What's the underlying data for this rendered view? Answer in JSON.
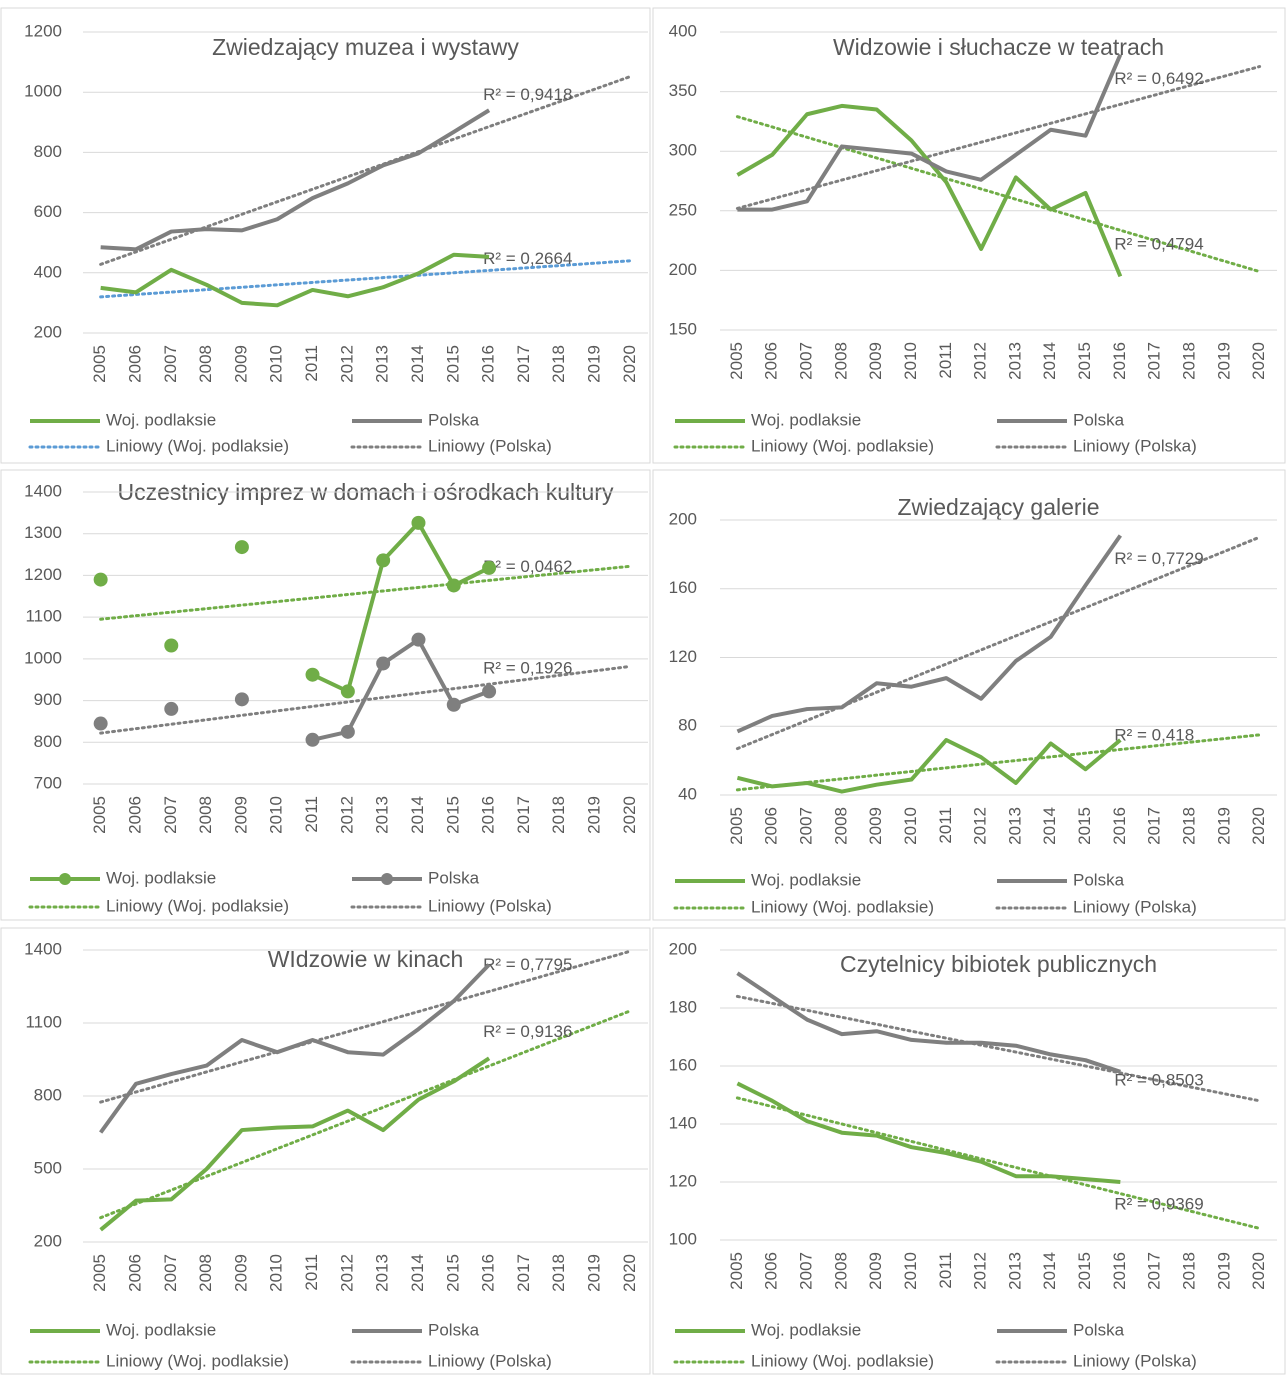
{
  "chart_data": [
    {
      "type": "line",
      "title": "Zwiedzający muzea i wystawy",
      "categories": [
        "2005",
        "2006",
        "2007",
        "2008",
        "2009",
        "2010",
        "2011",
        "2012",
        "2013",
        "2014",
        "2015",
        "2016",
        "2017",
        "2018",
        "2019",
        "2020"
      ],
      "ylim": [
        200,
        1200
      ],
      "yticks": [
        200,
        400,
        600,
        800,
        1000,
        1200
      ],
      "grid": true,
      "markers": false,
      "series": [
        {
          "name": "Woj. podlaksie",
          "color": "#70ad47",
          "values": [
            350,
            335,
            410,
            360,
            300,
            292,
            343,
            322,
            352,
            398,
            460,
            453,
            null,
            null,
            null,
            null
          ]
        },
        {
          "name": "Polska",
          "color": "#7f7f7f",
          "values": [
            485,
            478,
            537,
            545,
            541,
            578,
            648,
            697,
            757,
            797,
            868,
            940,
            null,
            null,
            null,
            null
          ]
        }
      ],
      "trendlines": [
        {
          "name": "Liniowy (Woj. podlaksie)",
          "color": "#5b9bd5",
          "start": 320,
          "end": 440,
          "r2_label": "R² = 0,2664"
        },
        {
          "name": "Liniowy (Polska)",
          "color": "#7f7f7f",
          "start": 428,
          "end": 1052,
          "r2_label": "R² = 0,9418"
        }
      ]
    },
    {
      "type": "line",
      "title": "Widzowie i słuchacze w teatrach",
      "categories": [
        "2005",
        "2006",
        "2007",
        "2008",
        "2009",
        "2010",
        "2011",
        "2012",
        "2013",
        "2014",
        "2015",
        "2016",
        "2017",
        "2018",
        "2019",
        "2020"
      ],
      "ylim": [
        150,
        400
      ],
      "yticks": [
        150,
        200,
        250,
        300,
        350,
        400
      ],
      "grid": true,
      "markers": false,
      "series": [
        {
          "name": "Woj. podlaksie",
          "color": "#70ad47",
          "values": [
            280,
            297,
            331,
            338,
            335,
            309,
            274,
            218,
            278,
            251,
            265,
            195,
            null,
            null,
            null,
            null
          ]
        },
        {
          "name": "Polska",
          "color": "#7f7f7f",
          "values": [
            251,
            251,
            258,
            304,
            301,
            298,
            283,
            276,
            297,
            318,
            313,
            381,
            null,
            null,
            null,
            null
          ]
        }
      ],
      "trendlines": [
        {
          "name": "Liniowy (Woj. podlaksie)",
          "color": "#70ad47",
          "start": 329,
          "end": 199,
          "r2_label": "R² = 0,4794"
        },
        {
          "name": "Liniowy (Polska)",
          "color": "#7f7f7f",
          "start": 252,
          "end": 371,
          "r2_label": "R² = 0,6492"
        }
      ]
    },
    {
      "type": "line",
      "title": "Uczestnicy imprez w domach i ośrodkach kultury",
      "categories": [
        "2005",
        "2006",
        "2007",
        "2008",
        "2009",
        "2010",
        "2011",
        "2012",
        "2013",
        "2014",
        "2015",
        "2016",
        "2017",
        "2018",
        "2019",
        "2020"
      ],
      "ylim": [
        700,
        1400
      ],
      "yticks": [
        700,
        800,
        900,
        1000,
        1100,
        1200,
        1300,
        1400
      ],
      "grid": true,
      "markers": true,
      "series": [
        {
          "name": "Woj. podlaksie",
          "color": "#70ad47",
          "values": [
            1190,
            null,
            1032,
            null,
            1268,
            null,
            962,
            922,
            1236,
            1326,
            1176,
            1218,
            null,
            null,
            null,
            null
          ]
        },
        {
          "name": "Polska",
          "color": "#7f7f7f",
          "values": [
            845,
            null,
            880,
            null,
            903,
            null,
            806,
            825,
            989,
            1046,
            890,
            922,
            null,
            null,
            null,
            null
          ]
        }
      ],
      "trendlines": [
        {
          "name": "Liniowy (Woj. podlaksie)",
          "color": "#70ad47",
          "start": 1095,
          "end": 1222,
          "r2_label": "R² = 0,0462"
        },
        {
          "name": "Liniowy (Polska)",
          "color": "#7f7f7f",
          "start": 822,
          "end": 982,
          "r2_label": "R² = 0,1926"
        }
      ]
    },
    {
      "type": "line",
      "title": "Zwiedzający galerie",
      "categories": [
        "2005",
        "2006",
        "2007",
        "2008",
        "2009",
        "2010",
        "2011",
        "2012",
        "2013",
        "2014",
        "2015",
        "2016",
        "2017",
        "2018",
        "2019",
        "2020"
      ],
      "ylim": [
        40,
        200
      ],
      "yticks": [
        40,
        80,
        120,
        160,
        200
      ],
      "grid": true,
      "markers": false,
      "series": [
        {
          "name": "Woj. podlaksie",
          "color": "#70ad47",
          "values": [
            50,
            45,
            47,
            42,
            46,
            49,
            72,
            62,
            47,
            70,
            55,
            72,
            null,
            null,
            null,
            null
          ]
        },
        {
          "name": "Polska",
          "color": "#7f7f7f",
          "values": [
            77,
            86,
            90,
            91,
            105,
            103,
            108,
            96,
            118,
            132,
            162,
            191,
            null,
            null,
            null,
            null
          ]
        }
      ],
      "trendlines": [
        {
          "name": "Liniowy (Woj. podlaksie)",
          "color": "#70ad47",
          "start": 43,
          "end": 75,
          "r2_label": "R² = 0,418"
        },
        {
          "name": "Liniowy (Polska)",
          "color": "#7f7f7f",
          "start": 67,
          "end": 190,
          "r2_label": "R² = 0,7729"
        }
      ]
    },
    {
      "type": "line",
      "title": "WIdzowie w kinach",
      "categories": [
        "2005",
        "2006",
        "2007",
        "2008",
        "2009",
        "2010",
        "2011",
        "2012",
        "2013",
        "2014",
        "2015",
        "2016",
        "2017",
        "2018",
        "2019",
        "2020"
      ],
      "ylim": [
        200,
        1400
      ],
      "yticks": [
        200,
        500,
        800,
        1100,
        1400
      ],
      "grid": true,
      "markers": false,
      "series": [
        {
          "name": "Woj. podlaksie",
          "color": "#70ad47",
          "values": [
            250,
            370,
            375,
            500,
            660,
            670,
            675,
            740,
            660,
            785,
            860,
            955,
            null,
            null,
            null,
            null
          ]
        },
        {
          "name": "Polska",
          "color": "#7f7f7f",
          "values": [
            650,
            850,
            890,
            925,
            1030,
            980,
            1030,
            980,
            970,
            1075,
            1190,
            1340,
            null,
            null,
            null,
            null
          ]
        }
      ],
      "trendlines": [
        {
          "name": "Liniowy (Woj. podlaksie)",
          "color": "#70ad47",
          "start": 300,
          "end": 1150,
          "r2_label": "R² = 0,9136"
        },
        {
          "name": "Liniowy (Polska)",
          "color": "#7f7f7f",
          "start": 775,
          "end": 1395,
          "r2_label": "R² = 0,7795"
        }
      ]
    },
    {
      "type": "line",
      "title": "Czytelnicy bibiotek publicznych",
      "categories": [
        "2005",
        "2006",
        "2007",
        "2008",
        "2009",
        "2010",
        "2011",
        "2012",
        "2013",
        "2014",
        "2015",
        "2016",
        "2017",
        "2018",
        "2019",
        "2020"
      ],
      "ylim": [
        100,
        200
      ],
      "yticks": [
        100,
        120,
        140,
        160,
        180,
        200
      ],
      "grid": true,
      "markers": false,
      "series": [
        {
          "name": "Woj. podlaksie",
          "color": "#70ad47",
          "values": [
            154,
            148,
            141,
            137,
            136,
            132,
            130,
            127,
            122,
            122,
            121,
            120,
            null,
            null,
            null,
            null
          ]
        },
        {
          "name": "Polska",
          "color": "#7f7f7f",
          "values": [
            192,
            184,
            176,
            171,
            172,
            169,
            168,
            168,
            167,
            164,
            162,
            158,
            null,
            null,
            null,
            null
          ]
        }
      ],
      "trendlines": [
        {
          "name": "Liniowy (Woj. podlaksie)",
          "color": "#70ad47",
          "start": 149,
          "end": 104,
          "r2_label": "R² = 0,9369"
        },
        {
          "name": "Liniowy (Polska)",
          "color": "#7f7f7f",
          "start": 184,
          "end": 148,
          "r2_label": "R² = 0,8503"
        }
      ]
    }
  ]
}
